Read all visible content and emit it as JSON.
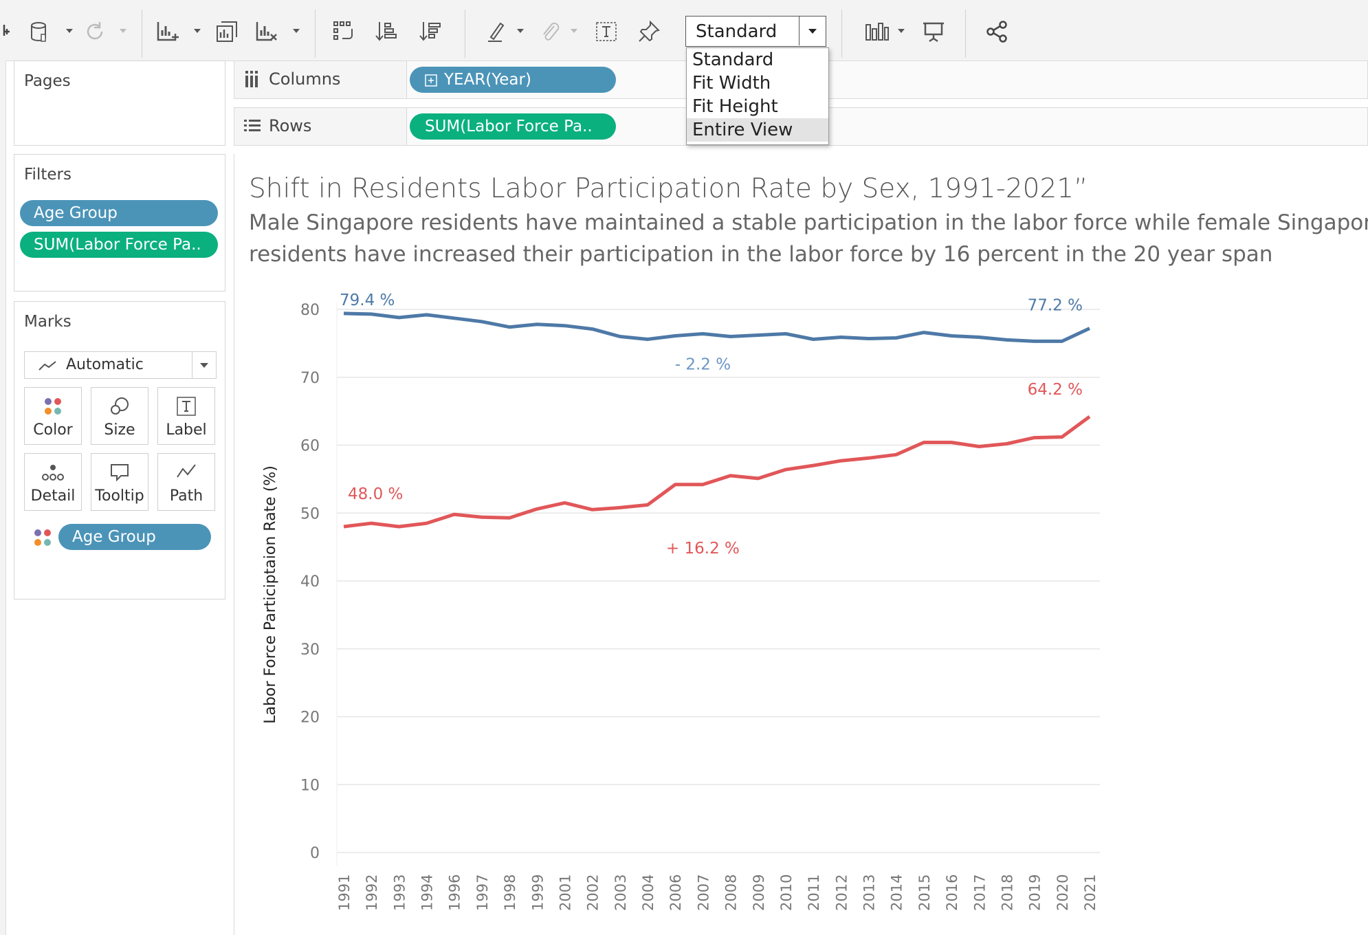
{
  "toolbar": {
    "fit_value": "Standard",
    "fit_options": [
      "Standard",
      "Fit Width",
      "Fit Height",
      "Entire View"
    ],
    "highlighted_option": "Entire View"
  },
  "panels": {
    "pages_title": "Pages",
    "filters_title": "Filters",
    "filters": [
      "Age Group",
      "SUM(Labor Force Pa.."
    ],
    "marks_title": "Marks",
    "mark_type": "Automatic",
    "mark_cards": [
      "Color",
      "Size",
      "Label",
      "Detail",
      "Tooltip",
      "Path"
    ],
    "color_field": "Age Group"
  },
  "shelves": {
    "columns_label": "Columns",
    "columns_pill": "YEAR(Year)",
    "rows_label": "Rows",
    "rows_pill": "SUM(Labor Force Pa.."
  },
  "chart": {
    "title": "Shift in Residents Labor Participation Rate by Sex, 1991-2021”",
    "subtitle_line1": "Male Singapore residents have maintained a stable participation in the labor force while female Singapore",
    "subtitle_line2": "residents have increased their participation in the labor force by 16 percent in the 20 year span"
  },
  "chart_data": {
    "type": "line",
    "ylabel": "Labor Force Participtaion Rate (%)",
    "xlabel": "",
    "ylim": [
      0,
      80
    ],
    "yticks": [
      0,
      10,
      20,
      30,
      40,
      50,
      60,
      70,
      80
    ],
    "grid": true,
    "categories": [
      "1991",
      "1992",
      "1993",
      "1994",
      "1996",
      "1997",
      "1998",
      "1999",
      "2001",
      "2002",
      "2003",
      "2004",
      "2006",
      "2007",
      "2008",
      "2009",
      "2010",
      "2011",
      "2012",
      "2013",
      "2014",
      "2015",
      "2016",
      "2017",
      "2018",
      "2019",
      "2020",
      "2021"
    ],
    "series": [
      {
        "color": "#4e79a7",
        "values": [
          79.4,
          79.3,
          78.8,
          79.2,
          78.7,
          78.2,
          77.4,
          77.8,
          77.6,
          77.1,
          76.0,
          75.6,
          76.1,
          76.4,
          76.0,
          76.2,
          76.4,
          75.6,
          75.9,
          75.7,
          75.8,
          76.6,
          76.1,
          75.9,
          75.5,
          75.3,
          75.3,
          77.2
        ]
      },
      {
        "color": "#e15759",
        "values": [
          48.0,
          48.5,
          48.0,
          48.5,
          49.8,
          49.4,
          49.3,
          50.6,
          51.5,
          50.5,
          50.8,
          51.2,
          54.2,
          54.2,
          55.5,
          55.1,
          56.4,
          57.0,
          57.7,
          58.1,
          58.6,
          60.4,
          60.4,
          59.8,
          60.2,
          61.1,
          61.2,
          64.2
        ]
      }
    ],
    "annotations": [
      {
        "text": "79.4 %",
        "series": 0,
        "at": "1991",
        "color": "#4e79a7"
      },
      {
        "text": "77.2 %",
        "series": 0,
        "at": "2021",
        "color": "#4e79a7"
      },
      {
        "text": "- 2.2 %",
        "series": 0,
        "at": "2007",
        "color": "#6b96c4"
      },
      {
        "text": "48.0 %",
        "series": 1,
        "at": "1991",
        "color": "#e15759"
      },
      {
        "text": "64.2 %",
        "series": 1,
        "at": "2021",
        "color": "#e15759"
      },
      {
        "text": "+ 16.2 %",
        "series": 1,
        "at": "2007",
        "color": "#e15759"
      }
    ]
  }
}
